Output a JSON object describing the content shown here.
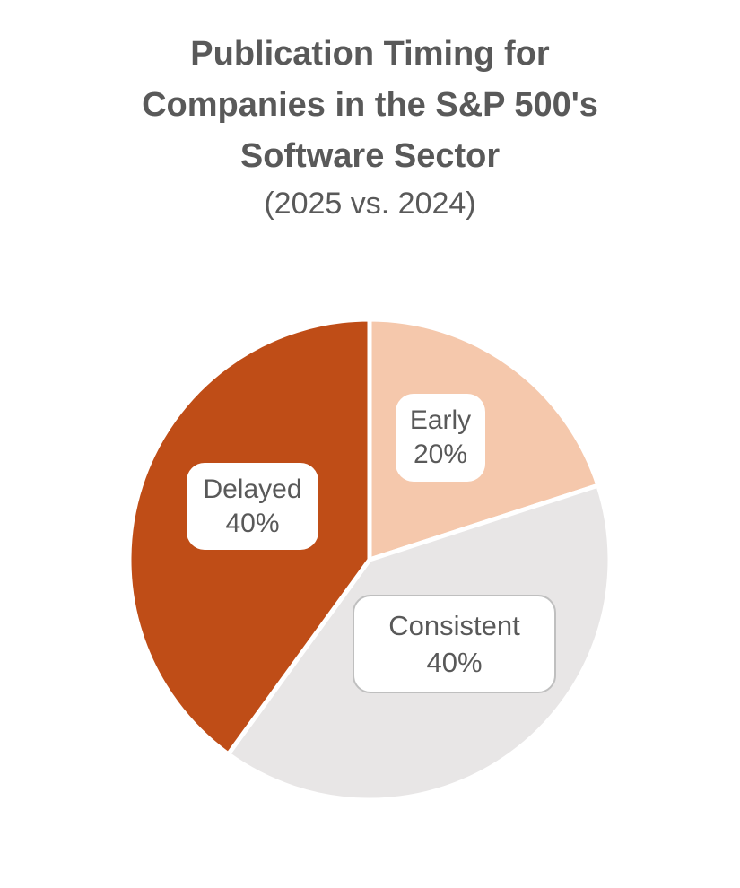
{
  "header": {
    "title_lines": [
      "Publication Timing for",
      "Companies in the S&P 500's",
      "Software Sector"
    ],
    "subtitle": "(2025 vs. 2024)",
    "text_color": "#595959"
  },
  "chart_data": {
    "type": "pie",
    "title": "Publication Timing for Companies in the S&P 500's Software Sector",
    "subtitle": "(2025 vs. 2024)",
    "direction": "clockwise",
    "start_angle_deg": 0,
    "categories": [
      "Early",
      "Consistent",
      "Delayed"
    ],
    "values": [
      20,
      40,
      40
    ],
    "slices": [
      {
        "label": "Early",
        "value": 20,
        "pct_text": "20%",
        "color": "#F5C8AC"
      },
      {
        "label": "Consistent",
        "value": 40,
        "pct_text": "40%",
        "color": "#E8E6E6"
      },
      {
        "label": "Delayed",
        "value": 40,
        "pct_text": "40%",
        "color": "#BF4D17"
      }
    ],
    "separator_color": "#FFFFFF",
    "label_text_color": "#595959",
    "label_box_fill": "#FFFFFF",
    "label_box_border_color": "#BFBFBF",
    "legend": "none",
    "data_labels": "category and percent, inside rounded white boxes"
  }
}
